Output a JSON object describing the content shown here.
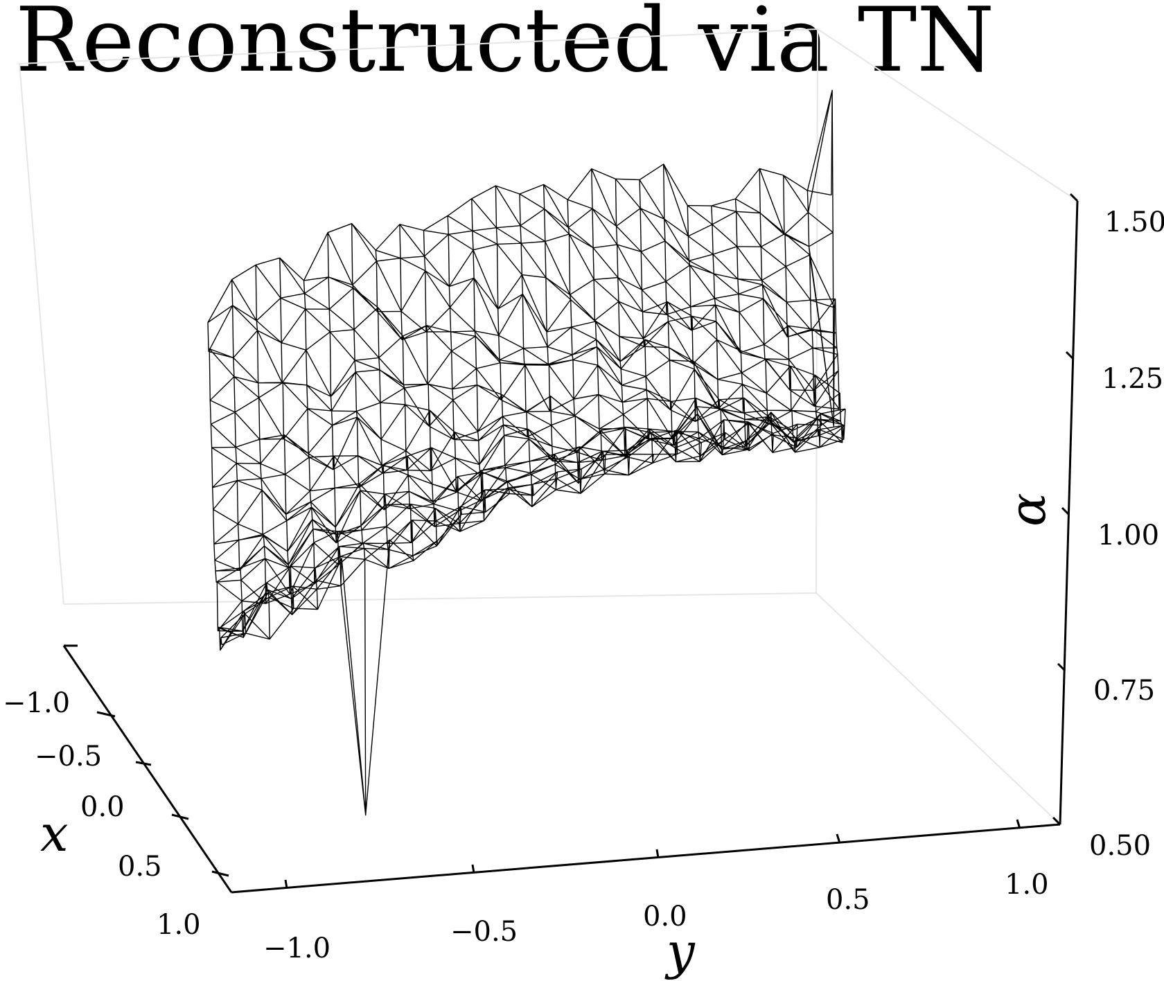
{
  "chart_data": {
    "type": "surface-wireframe",
    "title": "Reconstructed via TN",
    "xlabel": "x",
    "ylabel": "y",
    "zlabel": "α",
    "x_ticks": [
      "−1.0",
      "−0.5",
      "0.0",
      "0.5",
      "1.0"
    ],
    "y_ticks": [
      "−1.0",
      "−0.5",
      "0.0",
      "0.5",
      "1.0"
    ],
    "z_ticks": [
      "0.50",
      "0.75",
      "1.00",
      "1.25",
      "1.50"
    ],
    "xlim": [
      -1.2,
      1.0
    ],
    "ylim": [
      -1.2,
      1.2
    ],
    "zlim": [
      0.5,
      1.5
    ],
    "grid": false,
    "surface": {
      "description_values": "saddle-shaped surface, highest (~1.3–1.4) near x=-1 edge, lowest (~0.9–1.0) near x=+1, y=-0.5; noisy spikes reaching ~0.6 and ~1.45 at the edges",
      "edge_spikes": [
        {
          "x": 0.3,
          "y": -0.55,
          "z": 0.62
        },
        {
          "x": -0.9,
          "y": 1.05,
          "z": 1.45
        },
        {
          "x": -0.9,
          "y": 1.05,
          "z": 0.95
        }
      ]
    }
  }
}
